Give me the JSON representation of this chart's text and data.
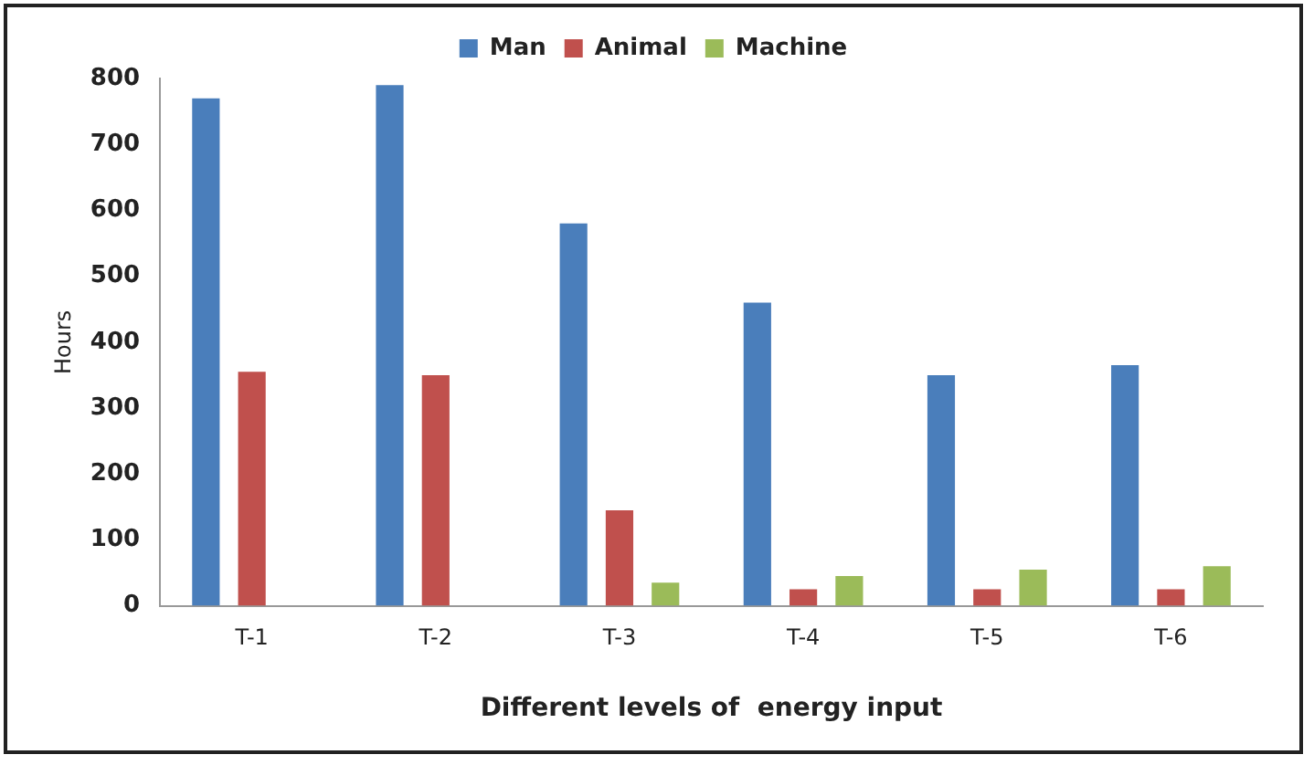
{
  "chart_data": {
    "type": "bar",
    "xlabel": "Different levels of  energy input",
    "ylabel": "Hours",
    "categories": [
      "T-1",
      "T-2",
      "T-3",
      "T-4",
      "T-5",
      "T-6"
    ],
    "series": [
      {
        "name": "Man",
        "color": "#4a7ebb",
        "values": [
          770,
          790,
          580,
          460,
          350,
          365
        ]
      },
      {
        "name": "Animal",
        "color": "#c0504d",
        "values": [
          355,
          350,
          145,
          25,
          25,
          25
        ]
      },
      {
        "name": "Machine",
        "color": "#9bbb59",
        "values": [
          null,
          null,
          35,
          45,
          55,
          60
        ]
      }
    ],
    "ylim": [
      0,
      800
    ],
    "yticks": [
      0,
      100,
      200,
      300,
      400,
      500,
      600,
      700,
      800
    ],
    "grid": false,
    "legend": "top"
  }
}
